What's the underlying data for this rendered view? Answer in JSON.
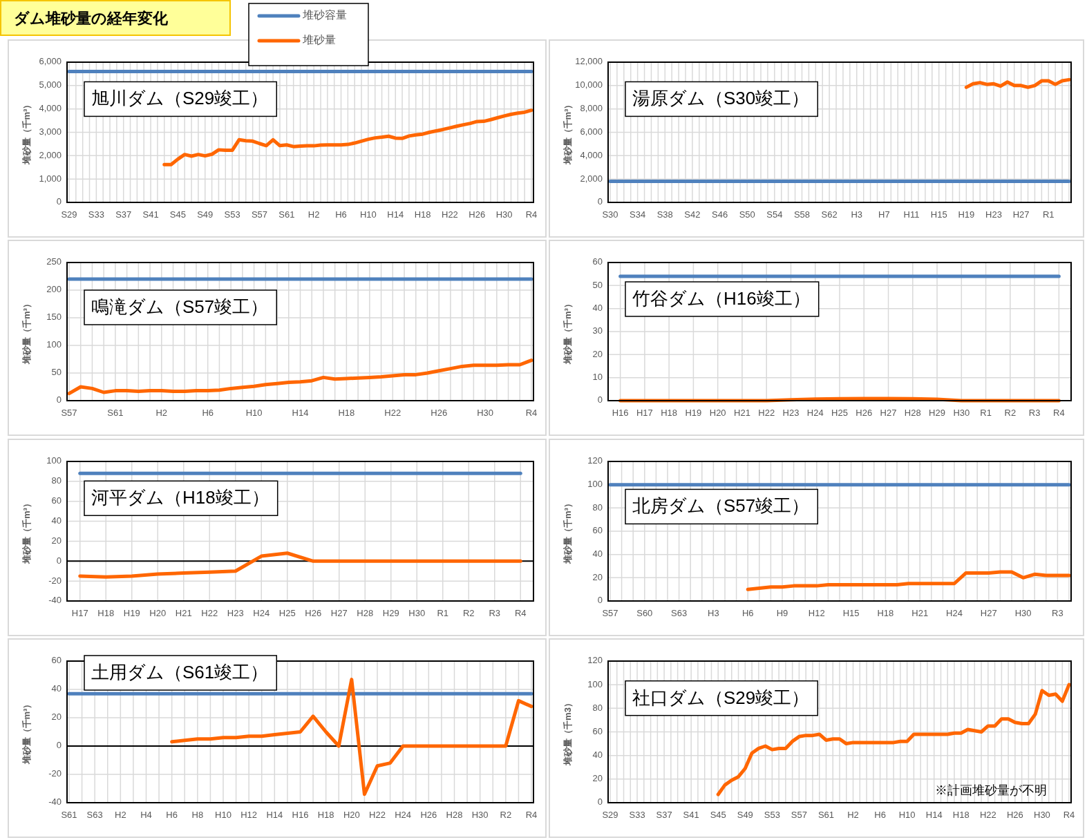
{
  "chart_data": [
    {
      "type": "line",
      "title": "旭川ダム（S29竣工）",
      "ylabel": "堆砂量（千m³）",
      "grid": true,
      "legend": "top",
      "annotations": [
        "ダム堆砂量の経年変化"
      ],
      "categories": [
        "S29",
        null,
        null,
        null,
        "S33",
        null,
        null,
        null,
        "S37",
        null,
        null,
        null,
        "S41",
        null,
        null,
        null,
        "S45",
        null,
        null,
        null,
        "S49",
        null,
        null,
        null,
        "S53",
        null,
        null,
        null,
        "S57",
        null,
        null,
        null,
        "S61",
        null,
        null,
        null,
        "H2",
        null,
        null,
        null,
        "H6",
        null,
        null,
        null,
        "H10",
        null,
        null,
        null,
        "H14",
        null,
        null,
        null,
        "H18",
        null,
        null,
        null,
        "H22",
        null,
        null,
        null,
        "H26",
        null,
        null,
        null,
        "H30",
        null,
        null,
        null,
        "R4"
      ],
      "ylim": [
        0,
        6000
      ],
      "yticks": [
        0,
        {
          "value": 1000,
          "label": "1,000"
        },
        {
          "value": 2000,
          "label": "2,000"
        },
        {
          "value": 3000,
          "label": "3,000"
        },
        {
          "value": 4000,
          "label": "4,000"
        },
        {
          "value": 5000,
          "label": "5,000"
        },
        {
          "value": 6000,
          "label": "6,000"
        }
      ],
      "series": [
        {
          "name": "堆砂容量",
          "color": "#4f81bd",
          "values": [
            5600,
            5600,
            5600,
            5600,
            5600,
            5600,
            5600,
            5600,
            5600,
            5600,
            5600,
            5600,
            5600,
            5600,
            5600,
            5600,
            5600,
            5600,
            5600,
            5600,
            5600,
            5600,
            5600,
            5600,
            5600,
            5600,
            5600,
            5600,
            5600,
            5600,
            5600,
            5600,
            5600,
            5600,
            5600,
            5600,
            5600,
            5600,
            5600,
            5600,
            5600,
            5600,
            5600,
            5600,
            5600,
            5600,
            5600,
            5600,
            5600,
            5600,
            5600,
            5600,
            5600,
            5600,
            5600,
            5600,
            5600,
            5600,
            5600,
            5600,
            5600,
            5600,
            5600,
            5600,
            5600,
            5600,
            5600,
            5600,
            5600
          ]
        },
        {
          "name": "堆砂量",
          "color": "#ff6600",
          "values": [
            null,
            null,
            null,
            null,
            null,
            null,
            null,
            null,
            null,
            null,
            null,
            null,
            null,
            null,
            1620,
            1620,
            1850,
            2050,
            1980,
            2050,
            1990,
            2060,
            2250,
            2230,
            2230,
            2680,
            2640,
            2620,
            2520,
            2430,
            2680,
            2430,
            2460,
            2390,
            2410,
            2420,
            2420,
            2450,
            2460,
            2460,
            2460,
            2480,
            2540,
            2620,
            2700,
            2760,
            2790,
            2830,
            2750,
            2740,
            2840,
            2890,
            2920,
            3000,
            3060,
            3120,
            3190,
            3260,
            3320,
            3380,
            3460,
            3470,
            3540,
            3620,
            3700,
            3770,
            3820,
            3860,
            3940
          ]
        }
      ]
    },
    {
      "type": "line",
      "title": "湯原ダム（S30竣工）",
      "ylabel": "堆砂量（千m³）",
      "grid": true,
      "categories": [
        "S30",
        null,
        null,
        null,
        "S34",
        null,
        null,
        null,
        "S38",
        null,
        null,
        null,
        "S42",
        null,
        null,
        null,
        "S46",
        null,
        null,
        null,
        "S50",
        null,
        null,
        null,
        "S54",
        null,
        null,
        null,
        "S58",
        null,
        null,
        null,
        "S62",
        null,
        null,
        null,
        "H3",
        null,
        null,
        null,
        "H7",
        null,
        null,
        null,
        "H11",
        null,
        null,
        null,
        "H15",
        null,
        null,
        null,
        "H19",
        null,
        null,
        null,
        "H23",
        null,
        null,
        null,
        "H27",
        null,
        null,
        null,
        "R1",
        null,
        null,
        null
      ],
      "ylim": [
        0,
        12000
      ],
      "yticks": [
        0,
        {
          "value": 2000,
          "label": "2,000"
        },
        {
          "value": 4000,
          "label": "4,000"
        },
        {
          "value": 6000,
          "label": "6,000"
        },
        {
          "value": 8000,
          "label": "8,000"
        },
        {
          "value": 10000,
          "label": "10,000"
        },
        {
          "value": 12000,
          "label": "12,000"
        }
      ],
      "series": [
        {
          "color": "#4f81bd",
          "values": [
            1800,
            1800,
            1800,
            1800,
            1800,
            1800,
            1800,
            1800,
            1800,
            1800,
            1800,
            1800,
            1800,
            1800,
            1800,
            1800,
            1800,
            1800,
            1800,
            1800,
            1800,
            1800,
            1800,
            1800,
            1800,
            1800,
            1800,
            1800,
            1800,
            1800,
            1800,
            1800,
            1800,
            1800,
            1800,
            1800,
            1800,
            1800,
            1800,
            1800,
            1800,
            1800,
            1800,
            1800,
            1800,
            1800,
            1800,
            1800,
            1800,
            1800,
            1800,
            1800,
            1800,
            1800,
            1800,
            1800,
            1800,
            1800,
            1800,
            1800,
            1800,
            1800,
            1800,
            1800,
            1800,
            1800,
            1800,
            1800
          ]
        },
        {
          "color": "#ff6600",
          "values": [
            null,
            null,
            null,
            null,
            null,
            null,
            null,
            null,
            null,
            null,
            null,
            null,
            null,
            null,
            null,
            null,
            null,
            null,
            null,
            null,
            null,
            null,
            null,
            null,
            null,
            null,
            null,
            null,
            null,
            null,
            null,
            null,
            null,
            null,
            null,
            null,
            null,
            null,
            null,
            null,
            null,
            null,
            null,
            null,
            null,
            null,
            null,
            null,
            null,
            null,
            null,
            null,
            9850,
            10150,
            10250,
            10100,
            10150,
            9950,
            10300,
            10000,
            10000,
            9850,
            10000,
            10400,
            10400,
            10100,
            10400,
            10500
          ]
        }
      ]
    },
    {
      "type": "line",
      "title": "鳴滝ダム（S57竣工）",
      "ylabel": "堆砂量（千m³）",
      "grid": true,
      "categories": [
        "S57",
        null,
        null,
        null,
        "S61",
        null,
        null,
        null,
        "H2",
        null,
        null,
        null,
        "H6",
        null,
        null,
        null,
        "H10",
        null,
        null,
        null,
        "H14",
        null,
        null,
        null,
        "H18",
        null,
        null,
        null,
        "H22",
        null,
        null,
        null,
        "H26",
        null,
        null,
        null,
        "H30",
        null,
        null,
        null,
        "R4"
      ],
      "ylim": [
        0,
        250
      ],
      "yticks": [
        0,
        50,
        100,
        150,
        200,
        250
      ],
      "series": [
        {
          "color": "#4f81bd",
          "values": [
            220,
            220,
            220,
            220,
            220,
            220,
            220,
            220,
            220,
            220,
            220,
            220,
            220,
            220,
            220,
            220,
            220,
            220,
            220,
            220,
            220,
            220,
            220,
            220,
            220,
            220,
            220,
            220,
            220,
            220,
            220,
            220,
            220,
            220,
            220,
            220,
            220,
            220,
            220,
            220,
            220
          ]
        },
        {
          "color": "#ff6600",
          "values": [
            13,
            25,
            22,
            15,
            18,
            18,
            17,
            18,
            18,
            17,
            17,
            18,
            18,
            19,
            22,
            24,
            26,
            29,
            31,
            33,
            34,
            36,
            42,
            39,
            40,
            41,
            42,
            43,
            45,
            47,
            47,
            50,
            54,
            58,
            62,
            64,
            64,
            64,
            65,
            65,
            73
          ]
        }
      ]
    },
    {
      "type": "line",
      "title": "竹谷ダム（H16竣工）",
      "ylabel": "堆砂量（千m³）",
      "grid": true,
      "categories": [
        "H16",
        "H17",
        "H18",
        "H19",
        "H20",
        "H21",
        "H22",
        "H23",
        "H24",
        "H25",
        "H26",
        "H27",
        "H28",
        "H29",
        "H30",
        "R1",
        "R2",
        "R3",
        "R4"
      ],
      "ylim": [
        0,
        60
      ],
      "yticks": [
        0,
        10,
        20,
        30,
        40,
        50,
        60
      ],
      "series": [
        {
          "color": "#4f81bd",
          "values": [
            54,
            54,
            54,
            54,
            54,
            54,
            54,
            54,
            54,
            54,
            54,
            54,
            54,
            54,
            54,
            54,
            54,
            54,
            54
          ]
        },
        {
          "color": "#ff6600",
          "values": [
            0,
            0,
            0,
            0,
            0,
            0,
            0,
            0.4,
            0.7,
            0.8,
            0.9,
            0.9,
            0.8,
            0.6,
            0,
            0,
            0,
            0,
            0
          ]
        }
      ]
    },
    {
      "type": "line",
      "title": "河平ダム（H18竣工）",
      "ylabel": "堆砂量（千m³）",
      "grid": true,
      "categories": [
        "H17",
        "H18",
        "H19",
        "H20",
        "H21",
        "H22",
        "H23",
        "H24",
        "H25",
        "H26",
        "H27",
        "H28",
        "H29",
        "H30",
        "R1",
        "R2",
        "R3",
        "R4"
      ],
      "ylim": [
        -40,
        100
      ],
      "yticks": [
        -40,
        -20,
        0,
        20,
        40,
        60,
        80,
        100
      ],
      "series": [
        {
          "color": "#4f81bd",
          "values": [
            88,
            88,
            88,
            88,
            88,
            88,
            88,
            88,
            88,
            88,
            88,
            88,
            88,
            88,
            88,
            88,
            88,
            88
          ]
        },
        {
          "color": "#ff6600",
          "values": [
            -15,
            -16,
            -15,
            -13,
            -12,
            -11,
            -10,
            5,
            8,
            0,
            0,
            0,
            0,
            0,
            0,
            0,
            0,
            0
          ]
        }
      ]
    },
    {
      "type": "line",
      "title": "北房ダム（S57竣工）",
      "ylabel": "堆砂量（千m³）",
      "grid": true,
      "categories": [
        "S57",
        null,
        null,
        "S60",
        null,
        null,
        "S63",
        null,
        null,
        "H3",
        null,
        null,
        "H6",
        null,
        null,
        "H9",
        null,
        null,
        "H12",
        null,
        null,
        "H15",
        null,
        null,
        "H18",
        null,
        null,
        "H21",
        null,
        null,
        "H24",
        null,
        null,
        "H27",
        null,
        null,
        "H30",
        null,
        null,
        "R3",
        null
      ],
      "ylim": [
        0,
        120
      ],
      "yticks": [
        0,
        20,
        40,
        60,
        80,
        100,
        120
      ],
      "series": [
        {
          "color": "#4f81bd",
          "values": [
            100,
            100,
            100,
            100,
            100,
            100,
            100,
            100,
            100,
            100,
            100,
            100,
            100,
            100,
            100,
            100,
            100,
            100,
            100,
            100,
            100,
            100,
            100,
            100,
            100,
            100,
            100,
            100,
            100,
            100,
            100,
            100,
            100,
            100,
            100,
            100,
            100,
            100,
            100,
            100,
            100
          ]
        },
        {
          "color": "#ff6600",
          "values": [
            null,
            null,
            null,
            null,
            null,
            null,
            null,
            null,
            null,
            null,
            null,
            null,
            10,
            11,
            12,
            12,
            13,
            13,
            13,
            14,
            14,
            14,
            14,
            14,
            14,
            14,
            15,
            15,
            15,
            15,
            15,
            24,
            24,
            24,
            25,
            25,
            20,
            23,
            22,
            22,
            22
          ]
        }
      ]
    },
    {
      "type": "line",
      "title": "土用ダム（S61竣工）",
      "ylabel": "堆砂量（千m³）",
      "grid": true,
      "categories": [
        "S61",
        null,
        "S63",
        null,
        "H2",
        null,
        "H4",
        null,
        "H6",
        null,
        "H8",
        null,
        "H10",
        null,
        "H12",
        null,
        "H14",
        null,
        "H16",
        null,
        "H18",
        null,
        "H20",
        null,
        "H22",
        null,
        "H24",
        null,
        "H26",
        null,
        "H28",
        null,
        "H30",
        null,
        "R2",
        null,
        "R4"
      ],
      "ylim": [
        -40,
        60
      ],
      "yticks": [
        -40,
        -20,
        0,
        20,
        40,
        60
      ],
      "series": [
        {
          "color": "#4f81bd",
          "values": [
            37,
            37,
            37,
            37,
            37,
            37,
            37,
            37,
            37,
            37,
            37,
            37,
            37,
            37,
            37,
            37,
            37,
            37,
            37,
            37,
            37,
            37,
            37,
            37,
            37,
            37,
            37,
            37,
            37,
            37,
            37,
            37,
            37,
            37,
            37,
            37,
            37
          ]
        },
        {
          "color": "#ff6600",
          "values": [
            null,
            null,
            null,
            null,
            null,
            null,
            null,
            null,
            3,
            4,
            5,
            5,
            6,
            6,
            7,
            7,
            8,
            9,
            10,
            21,
            10,
            0,
            47,
            -34,
            -14,
            -12,
            0,
            0,
            0,
            0,
            0,
            0,
            0,
            0,
            0,
            32,
            28
          ]
        }
      ]
    },
    {
      "type": "line",
      "title": "社口ダム（S29竣工）",
      "ylabel": "堆砂量（千m3）",
      "grid": true,
      "annotations": [
        "※計画堆砂量が不明"
      ],
      "categories": [
        "S29",
        null,
        null,
        null,
        "S33",
        null,
        null,
        null,
        "S37",
        null,
        null,
        null,
        "S41",
        null,
        null,
        null,
        "S45",
        null,
        null,
        null,
        "S49",
        null,
        null,
        null,
        "S53",
        null,
        null,
        null,
        "S57",
        null,
        null,
        null,
        "S61",
        null,
        null,
        null,
        "H2",
        null,
        null,
        null,
        "H6",
        null,
        null,
        null,
        "H10",
        null,
        null,
        null,
        "H14",
        null,
        null,
        null,
        "H18",
        null,
        null,
        null,
        "H22",
        null,
        null,
        null,
        "H26",
        null,
        null,
        null,
        "H30",
        null,
        null,
        null,
        "R4"
      ],
      "ylim": [
        0,
        120
      ],
      "yticks": [
        0,
        20,
        40,
        60,
        80,
        100,
        120
      ],
      "series": [
        {
          "color": "#ff6600",
          "values": [
            null,
            null,
            null,
            null,
            null,
            null,
            null,
            null,
            null,
            null,
            null,
            null,
            null,
            null,
            null,
            null,
            7,
            15,
            19,
            22,
            29,
            42,
            46,
            48,
            45,
            46,
            46,
            52,
            56,
            57,
            57,
            58,
            53,
            54,
            54,
            50,
            51,
            51,
            51,
            51,
            51,
            51,
            51,
            52,
            52,
            58,
            58,
            58,
            58,
            58,
            58,
            59,
            59,
            62,
            61,
            60,
            65,
            65,
            71,
            71,
            68,
            67,
            67,
            75,
            95,
            91,
            92,
            86,
            100
          ]
        }
      ]
    }
  ]
}
